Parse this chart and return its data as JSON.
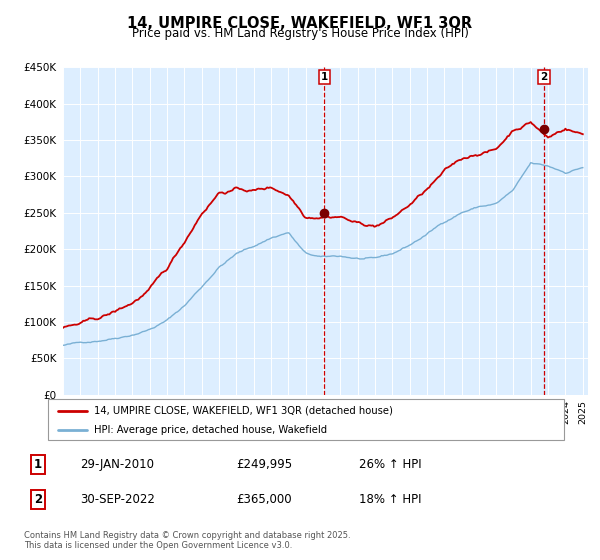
{
  "title": "14, UMPIRE CLOSE, WAKEFIELD, WF1 3QR",
  "subtitle": "Price paid vs. HM Land Registry's House Price Index (HPI)",
  "legend_line1": "14, UMPIRE CLOSE, WAKEFIELD, WF1 3QR (detached house)",
  "legend_line2": "HPI: Average price, detached house, Wakefield",
  "annotation1_label": "1",
  "annotation1_date": "29-JAN-2010",
  "annotation1_price": "£249,995",
  "annotation1_hpi": "26% ↑ HPI",
  "annotation2_label": "2",
  "annotation2_date": "30-SEP-2022",
  "annotation2_price": "£365,000",
  "annotation2_hpi": "18% ↑ HPI",
  "footer": "Contains HM Land Registry data © Crown copyright and database right 2025.\nThis data is licensed under the Open Government Licence v3.0.",
  "red_color": "#cc0000",
  "blue_color": "#7ab0d4",
  "bg_color": "#ddeeff",
  "ylim_min": 0,
  "ylim_max": 450000,
  "year_start": 1995,
  "year_end": 2025,
  "mark1_year": 2010.08,
  "mark1_value": 249995,
  "mark2_year": 2022.75,
  "mark2_value": 365000
}
